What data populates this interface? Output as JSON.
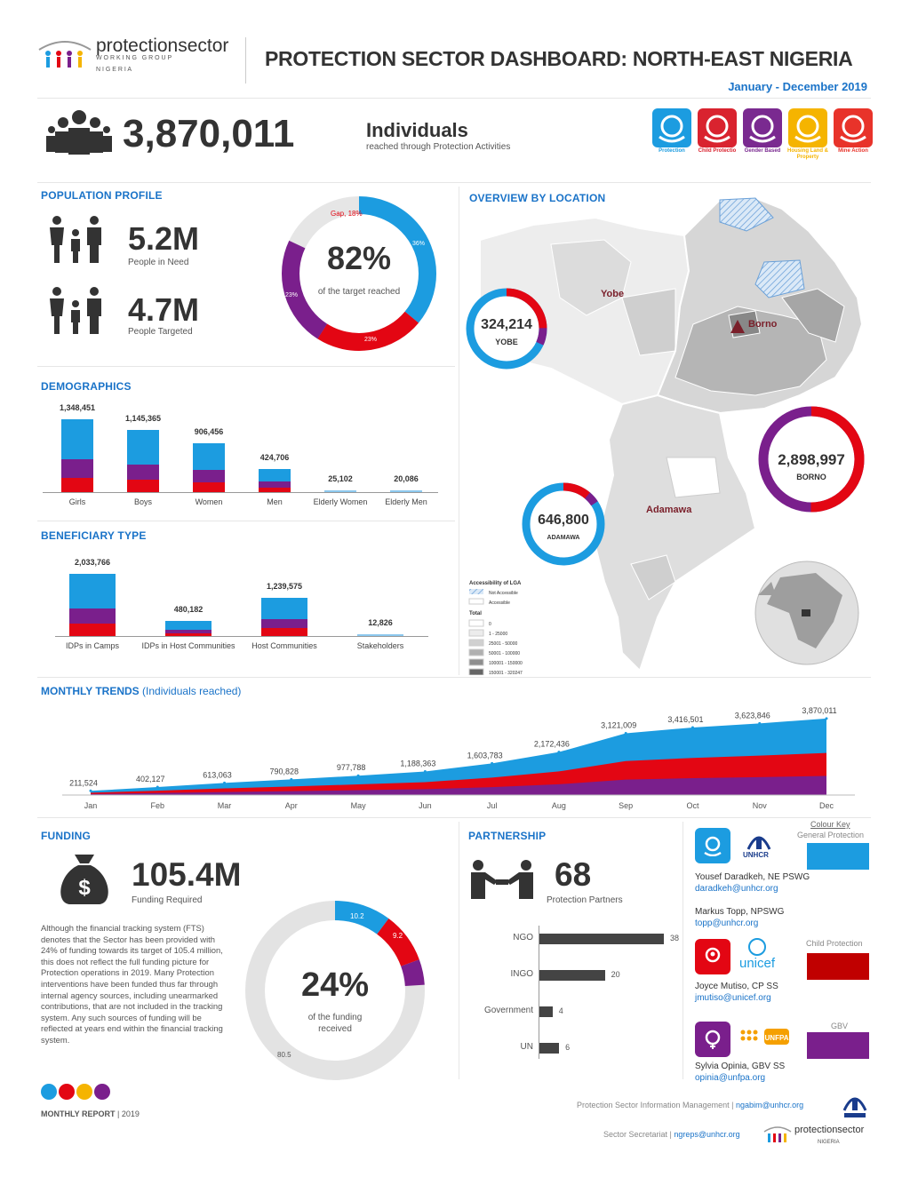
{
  "header": {
    "logo_name": "protectionsector",
    "logo_sub1": "W O R K I N G   G R O U P",
    "logo_sub2": "N I G E R I A",
    "title": "PROTECTION SECTOR DASHBOARD: NORTH-EAST NIGERIA",
    "period": "January - December 2019"
  },
  "headline": {
    "count": "3,870,011",
    "unit": "Individuals",
    "caption": "reached through Protection Activities"
  },
  "aor_icons": [
    {
      "label": "Protection",
      "color": "#1c9ce0",
      "icon": "hands-icon"
    },
    {
      "label": "Child Protectio",
      "color": "#d9232f",
      "icon": "child-icon"
    },
    {
      "label": "Gender Based",
      "color": "#7a2a90",
      "icon": "gender-icon"
    },
    {
      "label": "Housing Land & Property",
      "color": "#f5b400",
      "icon": "house-icon"
    },
    {
      "label": "Mine Action",
      "color": "#e8332a",
      "icon": "mine-icon"
    }
  ],
  "population": {
    "title": "POPULATION PROFILE",
    "pin_value": "5.2M",
    "pin_label": "People in Need",
    "targeted_value": "4.7M",
    "targeted_label": "People Targeted",
    "donut_pct": "82%",
    "donut_label": "of the target reached",
    "gap_label": "Gap, 18%",
    "seg_blue": "36%",
    "seg_red": "23%",
    "seg_purple": "23%"
  },
  "demographics": {
    "title": "DEMOGRAPHICS",
    "categories": [
      "Girls",
      "Boys",
      "Women",
      "Men",
      "Elderly Women",
      "Elderly Men"
    ],
    "values_text": [
      "1,348,451",
      "1,145,365",
      "906,456",
      "424,706",
      "25,102",
      "20,086"
    ]
  },
  "beneficiary": {
    "title": "BENEFICIARY TYPE",
    "categories": [
      "IDPs in Camps",
      "IDPs in Host Communities",
      "Host Communities",
      "Stakeholders"
    ],
    "values_text": [
      "2,033,766",
      "480,182",
      "1,239,575",
      "12,826"
    ]
  },
  "location": {
    "title": "OVERVIEW BY LOCATION",
    "yobe": "Yobe",
    "borno": "Borno",
    "adamawa": "Adamawa",
    "yobe_value": "324,214",
    "yobe_tag": "YOBE",
    "borno_value": "2,898,997",
    "borno_tag": "BORNO",
    "adamawa_value": "646,800",
    "adamawa_tag": "ADAMAWA",
    "legend_title": "Accessibility of LGA",
    "legend_na": "Not Accessible",
    "legend_acc": "Accessible",
    "legend_total": "Total",
    "legend_items": [
      "0",
      "1 - 25000",
      "25001 - 50000",
      "50001 - 100000",
      "100001 - 150000",
      "150001 - 320247"
    ]
  },
  "monthly": {
    "title": "MONTHLY TRENDS",
    "subtitle": "(Individuals reached)"
  },
  "chart_data": {
    "type": "area",
    "x": [
      "Jan",
      "Feb",
      "Mar",
      "Apr",
      "May",
      "Jun",
      "Jul",
      "Aug",
      "Sep",
      "Oct",
      "Nov",
      "Dec"
    ],
    "values": [
      211524,
      402127,
      613063,
      790828,
      977788,
      1188363,
      1603783,
      2172436,
      3121009,
      3416501,
      3623846,
      3870011
    ],
    "labels": [
      "211,524",
      "402,127",
      "613,063",
      "790,828",
      "977,788",
      "1,188,363",
      "1,603,783",
      "2,172,436",
      "3,121,009",
      "3,416,501",
      "3,623,846",
      "3,870,011"
    ],
    "ylim": [
      0,
      4000000
    ]
  },
  "funding": {
    "title": "FUNDING",
    "value": "105.4M",
    "label": "Funding Required",
    "text": "Although the financial tracking system (FTS) denotes that the Sector has been provided with 24% of funding towards its target of 105.4 million, this does not reflect the full funding picture for Protection operations in 2019. Many Protection interventions have been funded thus far through internal agency sources, including unearmarked contributions, that are not included in the tracking system. Any such sources of funding will be reflected at years end within the financial tracking system.",
    "donut_pct": "24%",
    "donut_label1": "of the funding",
    "donut_label2": "received",
    "seg_blue": "10.2",
    "seg_red": "9.2",
    "seg_grey": "80.5"
  },
  "partnership": {
    "title": "PARTNERSHIP",
    "value": "68",
    "label": "Protection Partners",
    "bars": [
      {
        "name": "NGO",
        "value": 38
      },
      {
        "name": "INGO",
        "value": 20
      },
      {
        "name": "Government",
        "value": 4
      },
      {
        "name": "UN",
        "value": 6
      }
    ]
  },
  "contacts": {
    "colour_key": "Colour Key",
    "key_gp": "General Protection",
    "key_cp": "Child Protection",
    "key_gbv": "GBV",
    "unhcr": "UNHCR",
    "unicef": "unicef",
    "unfpa": "UNFPA",
    "c1_name": "Yousef Daradkeh, NE PSWG",
    "c1_email": "daradkeh@unhcr.org",
    "c2_name": "Markus Topp, NPSWG",
    "c2_email": "topp@unhcr.org",
    "c3_name": "Joyce Mutiso, CP SS",
    "c3_email": "jmutiso@unicef.org",
    "c4_name": "Sylvia Opinia, GBV SS",
    "c4_email": "opinia@unfpa.org"
  },
  "footer": {
    "report": "MONTHLY REPORT",
    "year": "2019",
    "im_text": "Protection Sector Information Management |",
    "im_email": "ngabim@unhcr.org",
    "sec_text": "Sector Secretariat |",
    "sec_email": "ngreps@unhcr.org",
    "logo_name": "protectionsector",
    "logo_sub": "NIGERIA"
  },
  "colors": {
    "blue": "#1c9ce0",
    "red": "#e30613",
    "purple": "#7a1f8c",
    "yellow": "#f5b400",
    "accent": "#1a73c8"
  }
}
